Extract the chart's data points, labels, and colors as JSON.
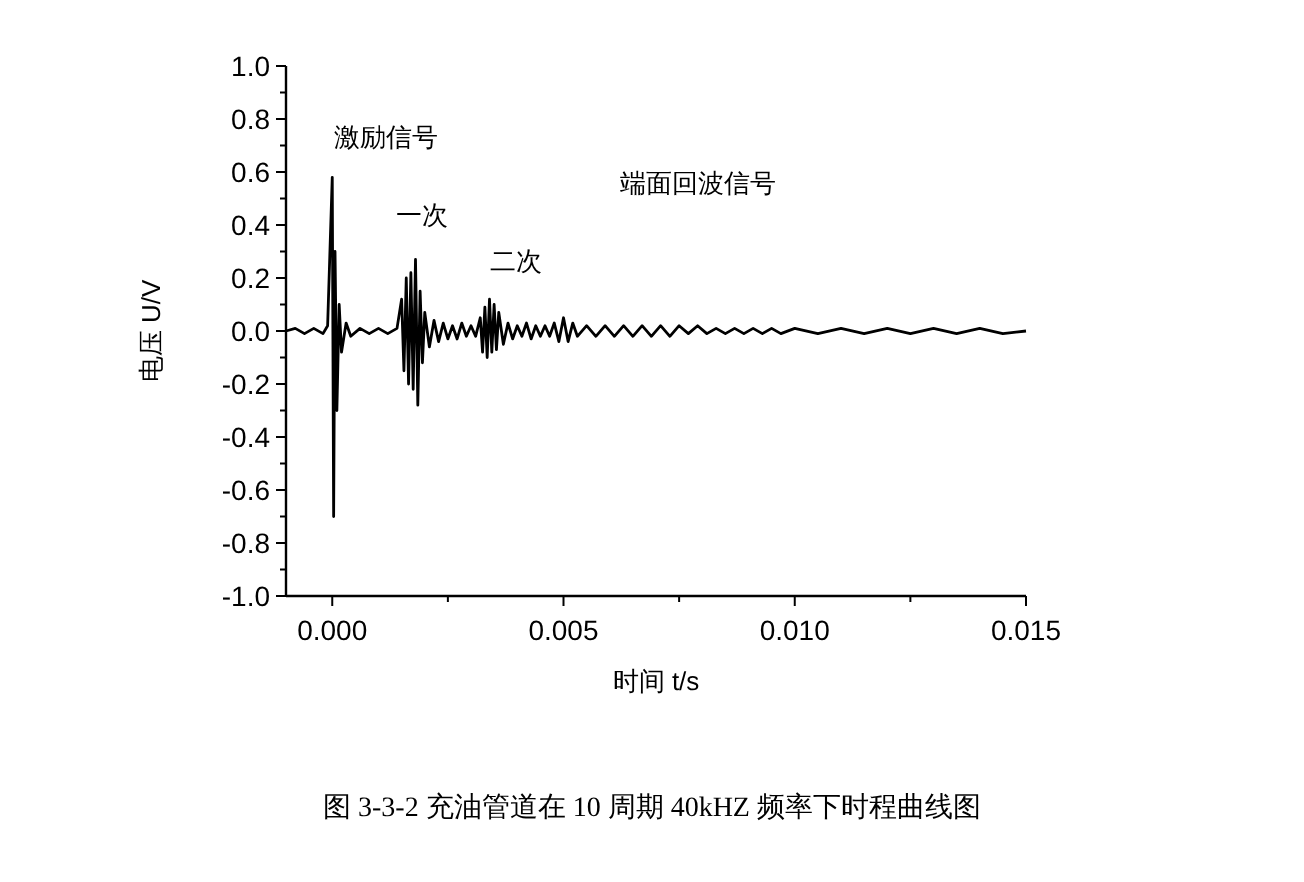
{
  "chart_data": {
    "type": "line",
    "xlabel": "时间  t/s",
    "ylabel": "电压  U/V",
    "color": "#000000",
    "xlim": [
      -0.001,
      0.015
    ],
    "xticks": [
      {
        "value": 0,
        "label": "0.000"
      },
      {
        "value": 0.005,
        "label": "0.005"
      },
      {
        "value": 0.01,
        "label": "0.010"
      },
      {
        "value": 0.015,
        "label": "0.015"
      }
    ],
    "ylim": [
      -1,
      1
    ],
    "yticks": [
      {
        "value": -1,
        "label": "-1.0"
      },
      -0.8,
      -0.6,
      -0.4,
      -0.2,
      {
        "value": 0,
        "label": "0.0"
      },
      0.2,
      0.4,
      0.6,
      0.8,
      {
        "value": 1,
        "label": "1.0"
      }
    ],
    "grid": false,
    "x": [
      -0.001,
      -0.0008,
      -0.0006,
      -0.0004,
      -0.0002,
      -0.0001,
      0,
      3e-05,
      6e-05,
      0.0001,
      0.00015,
      0.0002,
      0.0003,
      0.0004,
      0.0006,
      0.0008,
      0.001,
      0.0012,
      0.0014,
      0.0015,
      0.00155,
      0.0016,
      0.00165,
      0.0017,
      0.00175,
      0.0018,
      0.00185,
      0.0019,
      0.00195,
      0.002,
      0.0021,
      0.0022,
      0.0023,
      0.0024,
      0.0025,
      0.0026,
      0.0027,
      0.0028,
      0.0029,
      0.003,
      0.0031,
      0.0032,
      0.00325,
      0.0033,
      0.00335,
      0.0034,
      0.00345,
      0.0035,
      0.00355,
      0.0036,
      0.0037,
      0.0038,
      0.0039,
      0.004,
      0.0041,
      0.0042,
      0.0043,
      0.0044,
      0.0045,
      0.0046,
      0.0047,
      0.0048,
      0.0049,
      0.005,
      0.0051,
      0.0052,
      0.0053,
      0.0055,
      0.0057,
      0.0059,
      0.0061,
      0.0063,
      0.0065,
      0.0067,
      0.0069,
      0.0071,
      0.0073,
      0.0075,
      0.0077,
      0.0079,
      0.0081,
      0.0083,
      0.0085,
      0.0087,
      0.0089,
      0.0091,
      0.0093,
      0.0095,
      0.0097,
      0.01,
      0.0105,
      0.011,
      0.0115,
      0.012,
      0.0125,
      0.013,
      0.0135,
      0.014,
      0.0145,
      0.015
    ],
    "values": [
      0,
      0.01,
      -0.01,
      0.01,
      -0.01,
      0.02,
      0.58,
      -0.7,
      0.3,
      -0.3,
      0.1,
      -0.08,
      0.03,
      -0.02,
      0.01,
      -0.01,
      0.01,
      -0.01,
      0.01,
      0.12,
      -0.15,
      0.2,
      -0.2,
      0.22,
      -0.22,
      0.27,
      -0.28,
      0.15,
      -0.12,
      0.07,
      -0.06,
      0.04,
      -0.04,
      0.03,
      -0.03,
      0.02,
      -0.03,
      0.03,
      -0.02,
      0.02,
      -0.02,
      0.05,
      -0.08,
      0.09,
      -0.1,
      0.12,
      -0.08,
      0.1,
      -0.07,
      0.07,
      -0.05,
      0.03,
      -0.03,
      0.02,
      -0.02,
      0.03,
      -0.03,
      0.02,
      -0.02,
      0.02,
      -0.02,
      0.03,
      -0.04,
      0.05,
      -0.04,
      0.03,
      -0.02,
      0.02,
      -0.02,
      0.02,
      -0.02,
      0.02,
      -0.02,
      0.02,
      -0.02,
      0.02,
      -0.02,
      0.02,
      -0.01,
      0.02,
      -0.01,
      0.01,
      -0.01,
      0.01,
      -0.01,
      0.01,
      -0.01,
      0.01,
      -0.01,
      0.01,
      -0.01,
      0.01,
      -0.01,
      0.01,
      -0.01,
      0.01,
      -0.01,
      0.01,
      -0.01,
      0
    ],
    "annotations": [
      "激励信号",
      "一次",
      "二次",
      "端面回波信号",
      "图 3-3-2  充油管道在 10 周期 40kHZ 频率下时程曲线图"
    ]
  }
}
